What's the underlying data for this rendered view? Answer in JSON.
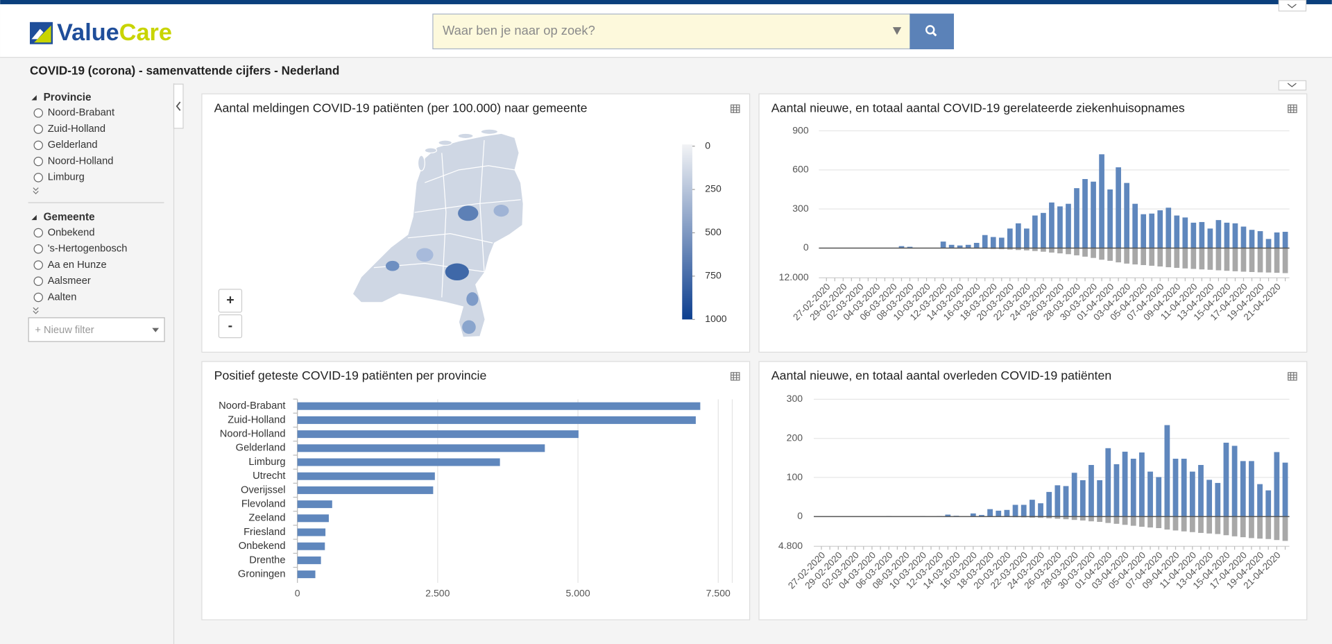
{
  "header": {
    "logo": [
      "Value",
      "Care"
    ],
    "search_placeholder": "Waar ben je naar op zoek?"
  },
  "page_title": "COVID-19 (corona) - samenvattende cijfers - Nederland",
  "sidebar": {
    "filters": [
      {
        "title": "Provincie",
        "options": [
          "Noord-Brabant",
          "Zuid-Holland",
          "Gelderland",
          "Noord-Holland",
          "Limburg"
        ]
      },
      {
        "title": "Gemeente",
        "options": [
          "Onbekend",
          "'s-Hertogenbosch",
          "Aa en Hunze",
          "Aalsmeer",
          "Aalten"
        ]
      }
    ],
    "new_filter": "+ Nieuw filter"
  },
  "chart_data": [
    {
      "type": "choropleth",
      "title": "Aantal meldingen COVID-19 patiënten (per 100.000) naar gemeente",
      "colorbar": {
        "range": [
          0,
          1000
        ],
        "ticks": [
          0,
          250,
          500,
          750,
          1000
        ],
        "colors": [
          "#f2f3f5",
          "#0d3f8f"
        ]
      },
      "zoom_in": "+",
      "zoom_out": "-"
    },
    {
      "type": "bar",
      "title": "Aantal nieuwe, en totaal aantal COVID-19 gerelateerde ziekenhuisopnames",
      "categories": [
        "27-02-2020",
        null,
        "29-02-2020",
        null,
        "02-03-2020",
        null,
        "04-03-2020",
        null,
        "06-03-2020",
        null,
        "08-03-2020",
        null,
        "10-03-2020",
        null,
        "12-03-2020",
        null,
        "14-03-2020",
        null,
        "16-03-2020",
        null,
        "18-03-2020",
        null,
        "20-03-2020",
        null,
        "22-03-2020",
        null,
        "24-03-2020",
        null,
        "26-03-2020",
        null,
        "28-03-2020",
        null,
        "30-03-2020",
        null,
        "01-04-2020",
        null,
        "03-04-2020",
        null,
        "05-04-2020",
        null,
        "07-04-2020",
        null,
        "09-04-2020",
        null,
        "11-04-2020",
        null,
        "13-04-2020",
        null,
        "15-04-2020",
        null,
        "17-04-2020",
        null,
        "19-04-2020",
        null,
        "21-04-2020",
        null
      ],
      "series": [
        {
          "color": "#5f87bd",
          "values": [
            0,
            0,
            0,
            0,
            0,
            0,
            0,
            0,
            0,
            15,
            10,
            0,
            0,
            0,
            50,
            25,
            20,
            25,
            40,
            100,
            85,
            80,
            150,
            190,
            150,
            250,
            270,
            350,
            320,
            340,
            460,
            530,
            510,
            720,
            450,
            620,
            500,
            340,
            260,
            265,
            290,
            310,
            250,
            235,
            195,
            200,
            150,
            215,
            195,
            190,
            165,
            140,
            130,
            70,
            120,
            125
          ]
        },
        {
          "color": "#a8a8a8",
          "axis": "y2",
          "values": [
            0,
            0,
            0,
            0,
            0,
            0,
            0,
            0,
            0,
            15,
            25,
            25,
            25,
            25,
            75,
            100,
            120,
            145,
            185,
            285,
            370,
            450,
            600,
            790,
            940,
            1190,
            1460,
            1810,
            2130,
            2470,
            2930,
            3460,
            3970,
            4690,
            5140,
            5760,
            6260,
            6600,
            6860,
            7125,
            7415,
            7725,
            7975,
            8210,
            8405,
            8605,
            8755,
            8970,
            9165,
            9355,
            9520,
            9660,
            9790,
            9860,
            9980,
            10105
          ]
        }
      ],
      "ylim": [
        0,
        900
      ],
      "yticks": [
        0,
        300,
        600,
        900
      ],
      "y2lim": [
        0,
        12000
      ],
      "y2ticks": [
        {
          "value": 12000,
          "label": "12.000"
        }
      ],
      "grid": true
    },
    {
      "type": "hbar",
      "title": "Positief geteste COVID-19 patiënten per provincie",
      "categories": [
        "Noord-Brabant",
        "Zuid-Holland",
        "Noord-Holland",
        "Gelderland",
        "Limburg",
        "Utrecht",
        "Overijssel",
        "Flevoland",
        "Zeeland",
        "Friesland",
        "Onbekend",
        "Drenthe",
        "Groningen"
      ],
      "values": [
        7180,
        7100,
        5010,
        4410,
        3610,
        2450,
        2420,
        620,
        560,
        500,
        490,
        420,
        320
      ],
      "color": "#5f87bd",
      "xlim": [
        0,
        7750
      ],
      "xticks": [
        0,
        {
          "value": 2500,
          "label": "2.500"
        },
        {
          "value": 5000,
          "label": "5.000"
        },
        {
          "value": 7500,
          "label": "7.500"
        }
      ],
      "grid": true
    },
    {
      "type": "bar",
      "title": "Aantal nieuwe, en totaal aantal overleden COVID-19 patiënten",
      "categories": [
        "27-02-2020",
        null,
        "29-02-2020",
        null,
        "02-03-2020",
        null,
        "04-03-2020",
        null,
        "06-03-2020",
        null,
        "08-03-2020",
        null,
        "10-03-2020",
        null,
        "12-03-2020",
        null,
        "14-03-2020",
        null,
        "16-03-2020",
        null,
        "18-03-2020",
        null,
        "20-03-2020",
        null,
        "22-03-2020",
        null,
        "24-03-2020",
        null,
        "26-03-2020",
        null,
        "28-03-2020",
        null,
        "30-03-2020",
        null,
        "01-04-2020",
        null,
        "03-04-2020",
        null,
        "05-04-2020",
        null,
        "07-04-2020",
        null,
        "09-04-2020",
        null,
        "11-04-2020",
        null,
        "13-04-2020",
        null,
        "15-04-2020",
        null,
        "17-04-2020",
        null,
        "19-04-2020",
        null,
        "21-04-2020",
        null
      ],
      "series": [
        {
          "color": "#5f87bd",
          "values": [
            0,
            0,
            0,
            0,
            0,
            0,
            0,
            0,
            1,
            0,
            0,
            0,
            1,
            0,
            1,
            5,
            2,
            0,
            8,
            4,
            19,
            15,
            17,
            30,
            30,
            43,
            34,
            63,
            80,
            78,
            112,
            93,
            132,
            93,
            175,
            134,
            166,
            148,
            164,
            115,
            101,
            234,
            148,
            148,
            115,
            132,
            94,
            86,
            189,
            181,
            142,
            142,
            83,
            67,
            165,
            138
          ]
        },
        {
          "color": "#a8a8a8",
          "axis": "y2",
          "values": [
            0,
            0,
            0,
            0,
            0,
            0,
            0,
            0,
            1,
            1,
            1,
            1,
            2,
            2,
            3,
            8,
            10,
            10,
            18,
            22,
            41,
            56,
            73,
            103,
            133,
            176,
            210,
            273,
            353,
            431,
            543,
            636,
            768,
            861,
            1036,
            1170,
            1336,
            1484,
            1648,
            1763,
            1864,
            2098,
            2246,
            2394,
            2509,
            2641,
            2735,
            2821,
            3010,
            3191,
            3333,
            3475,
            3558,
            3625,
            3790,
            3928
          ]
        }
      ],
      "ylim": [
        0,
        300
      ],
      "yticks": [
        0,
        100,
        200,
        300
      ],
      "y2lim": [
        0,
        4800
      ],
      "y2ticks": [
        {
          "value": 4800,
          "label": "4.800"
        }
      ],
      "grid": true
    }
  ]
}
